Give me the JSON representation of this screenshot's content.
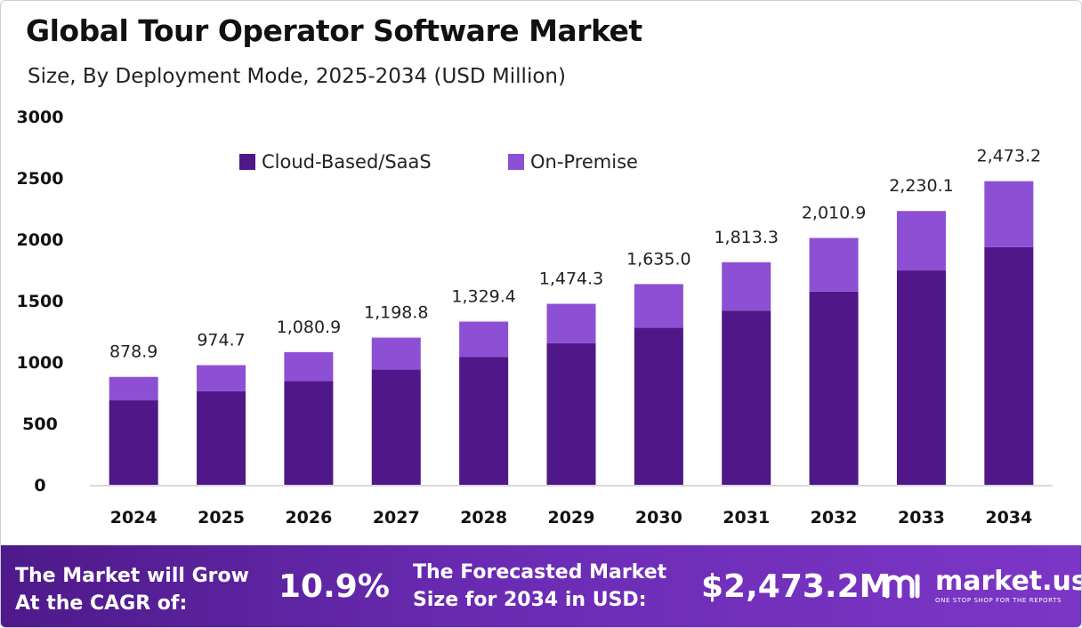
{
  "chart_data": {
    "type": "bar",
    "stacked": true,
    "title": "Global Tour Operator Software Market",
    "subtitle": "Size, By Deployment Mode, 2025-2034 (USD Million)",
    "categories": [
      "2024",
      "2025",
      "2026",
      "2027",
      "2028",
      "2029",
      "2030",
      "2031",
      "2032",
      "2033",
      "2034"
    ],
    "series": [
      {
        "name": "Cloud-Based/SaaS",
        "color": "#4f1787",
        "values": [
          688,
          763,
          846,
          938,
          1040,
          1154,
          1280,
          1419,
          1574,
          1746,
          1936
        ]
      },
      {
        "name": "On-Premise",
        "color": "#8d4fd4",
        "values": [
          190.9,
          211.7,
          234.9,
          260.8,
          289.4,
          320.3,
          355.0,
          394.3,
          436.9,
          484.1,
          537.2
        ]
      }
    ],
    "totals_labels": [
      "878.9",
      "974.7",
      "1,080.9",
      "1,198.8",
      "1,329.4",
      "1,474.3",
      "1,635.0",
      "1,813.3",
      "2,010.9",
      "2,230.1",
      "2,473.2"
    ],
    "totals": [
      878.9,
      974.7,
      1080.9,
      1198.8,
      1329.4,
      1474.3,
      1635.0,
      1813.3,
      2010.9,
      2230.1,
      2473.2
    ],
    "yticks": [
      "0",
      "500",
      "1000",
      "1500",
      "2000",
      "2500",
      "3000"
    ],
    "ylim": [
      0,
      3000
    ],
    "grid": false,
    "legend_position": "top-center"
  },
  "footer": {
    "cagr_label": "The Market will Grow\nAt the CAGR of:",
    "cagr_value": "10.9%",
    "forecast_label": "The Forecasted Market\nSize for 2034 in USD:",
    "forecast_value": "$2,473.2M",
    "brand_name": "market.us",
    "brand_tagline": "ONE STOP SHOP FOR THE REPORTS"
  },
  "colors": {
    "footer_gradient_start": "#4e1a8a",
    "footer_gradient_end": "#7c36c7"
  }
}
